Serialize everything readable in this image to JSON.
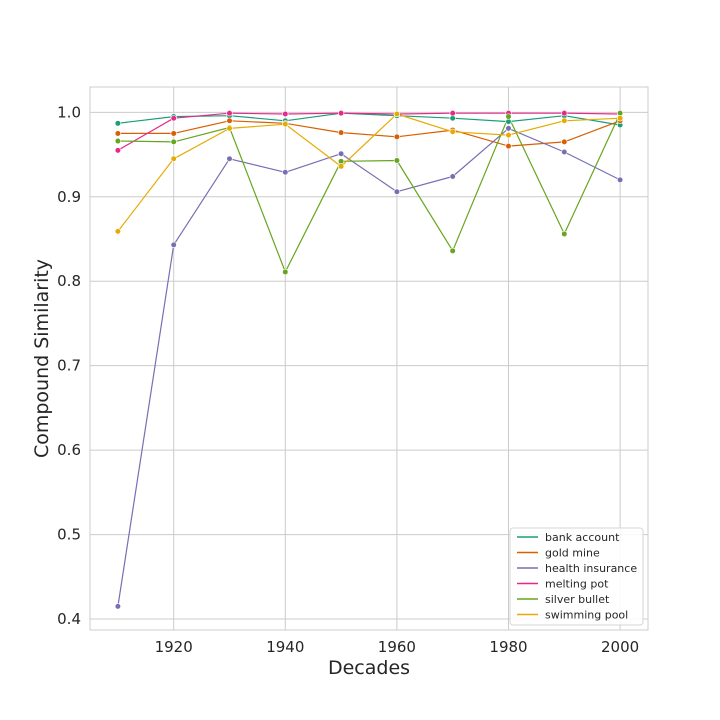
{
  "chart_data": {
    "type": "line",
    "xlabel": "Decades",
    "ylabel": "Compound Similarity",
    "x": [
      1910,
      1920,
      1930,
      1940,
      1950,
      1960,
      1970,
      1980,
      1990,
      2000
    ],
    "xlim": [
      1905,
      2005
    ],
    "ylim": [
      0.387,
      1.03
    ],
    "xticks": [
      1920,
      1940,
      1960,
      1980,
      2000
    ],
    "yticks": [
      0.4,
      0.5,
      0.6,
      0.7,
      0.8,
      0.9,
      1.0
    ],
    "xtick_labels": [
      "1920",
      "1940",
      "1960",
      "1980",
      "2000"
    ],
    "ytick_labels": [
      "0.4",
      "0.5",
      "0.6",
      "0.7",
      "0.8",
      "0.9",
      "1.0"
    ],
    "grid": true,
    "legend_position": "bottom-right",
    "series": [
      {
        "name": "bank account",
        "color": "#1b9e77",
        "values": [
          0.987,
          0.995,
          0.996,
          0.99,
          0.999,
          0.996,
          0.993,
          0.989,
          0.996,
          0.985
        ]
      },
      {
        "name": "gold mine",
        "color": "#d95f02",
        "values": [
          0.975,
          0.975,
          0.99,
          0.987,
          0.976,
          0.971,
          0.979,
          0.96,
          0.965,
          0.99
        ]
      },
      {
        "name": "health insurance",
        "color": "#7570b3",
        "values": [
          0.415,
          0.843,
          0.945,
          0.929,
          0.951,
          0.906,
          0.924,
          0.981,
          0.953,
          0.92
        ]
      },
      {
        "name": "melting pot",
        "color": "#e7298a",
        "values": [
          0.955,
          0.993,
          0.999,
          0.998,
          0.999,
          0.998,
          0.999,
          0.999,
          0.999,
          0.998
        ]
      },
      {
        "name": "silver bullet",
        "color": "#66a61e",
        "values": [
          0.966,
          0.965,
          0.982,
          0.811,
          0.942,
          0.943,
          0.836,
          0.995,
          0.856,
          0.999
        ]
      },
      {
        "name": "swimming pool",
        "color": "#e6ab02",
        "values": [
          0.859,
          0.945,
          0.981,
          0.986,
          0.936,
          0.998,
          0.977,
          0.973,
          0.99,
          0.993
        ]
      }
    ]
  }
}
